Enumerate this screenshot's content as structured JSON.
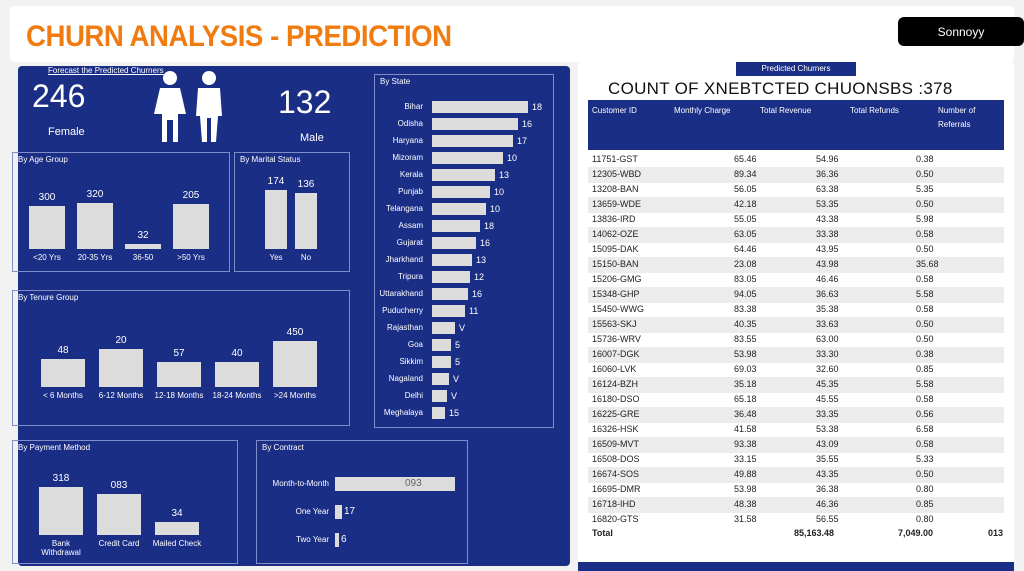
{
  "header": {
    "title": "CHURN ANALYSIS - PREDICTION",
    "summary_button": "Sonnoyy"
  },
  "kpi": {
    "label": "Forecast the Predicted Churners",
    "left_value": "246",
    "left_sub": "Female",
    "right_value": "132",
    "right_sub": "Male"
  },
  "panel_age": {
    "title": "By Age Group",
    "bars": [
      {
        "value": "300",
        "label": "<20 Yrs",
        "frac": 0.63
      },
      {
        "value": "320",
        "label": "20-35 Yrs",
        "frac": 0.68
      },
      {
        "value": "32",
        "label": "36-50",
        "frac": 0.07
      },
      {
        "value": "205",
        "label": ">50 Yrs",
        "frac": 0.66
      }
    ]
  },
  "panel_marital": {
    "title": "By Marital Status",
    "bars": [
      {
        "value": "174",
        "label": "Yes",
        "frac": 0.9
      },
      {
        "value": "136",
        "label": "No",
        "frac": 0.85
      }
    ]
  },
  "panel_tenure": {
    "title": "By Tenure Group",
    "bars": [
      {
        "value": "48",
        "label": "< 6 Months",
        "frac": 0.38
      },
      {
        "value": "20",
        "label": "6-12 Months",
        "frac": 0.52
      },
      {
        "value": "57",
        "label": "12-18 Months",
        "frac": 0.34
      },
      {
        "value": "40",
        "label": "18-24 Months",
        "frac": 0.34
      },
      {
        "value": "450",
        "label": ">24 Months",
        "frac": 0.62
      }
    ]
  },
  "panel_state": {
    "title": "By State",
    "rows": [
      {
        "label": "Bihar",
        "value": "18",
        "frac": 1.0
      },
      {
        "label": "Odisha",
        "value": "16",
        "frac": 0.9
      },
      {
        "label": "Haryana",
        "value": "17",
        "frac": 0.84
      },
      {
        "label": "Mizoram",
        "value": "10",
        "frac": 0.74
      },
      {
        "label": "Kerala",
        "value": "13",
        "frac": 0.66
      },
      {
        "label": "Punjab",
        "value": "10",
        "frac": 0.6
      },
      {
        "label": "Telangana",
        "value": "10",
        "frac": 0.56
      },
      {
        "label": "Assam",
        "value": "18",
        "frac": 0.5
      },
      {
        "label": "Gujarat",
        "value": "16",
        "frac": 0.46
      },
      {
        "label": "Jharkhand",
        "value": "13",
        "frac": 0.42
      },
      {
        "label": "Tripura",
        "value": "12",
        "frac": 0.4
      },
      {
        "label": "Uttarakhand",
        "value": "16",
        "frac": 0.38
      },
      {
        "label": "Puducherry",
        "value": "11",
        "frac": 0.34
      },
      {
        "label": "Rajasthan",
        "value": "V",
        "frac": 0.24
      },
      {
        "label": "Goa",
        "value": "5",
        "frac": 0.2
      },
      {
        "label": "Sikkim",
        "value": "5",
        "frac": 0.2
      },
      {
        "label": "Nagaland",
        "value": "V",
        "frac": 0.18
      },
      {
        "label": "Delhi",
        "value": "V",
        "frac": 0.16
      },
      {
        "label": "Meghalaya",
        "value": "15",
        "frac": 0.14
      }
    ]
  },
  "panel_payment": {
    "title": "By Payment Method",
    "bars": [
      {
        "value": "318",
        "label": "Bank Withdrawal",
        "frac": 0.73
      },
      {
        "value": "083",
        "label": "Credit Card",
        "frac": 0.62
      },
      {
        "value": "34",
        "label": "Mailed Check",
        "frac": 0.2
      }
    ]
  },
  "panel_contract": {
    "title": "By Contract",
    "rows": [
      {
        "label": "Month-to-Month",
        "value": "093",
        "frac": 1.0
      },
      {
        "label": "One Year",
        "value": "17",
        "frac": 0.06
      },
      {
        "label": "Two Year",
        "value": "6",
        "frac": 0.02
      }
    ]
  },
  "table": {
    "tag": "Predicted Churners",
    "title": "COUNT OF XNEBTCTED CHUONSBS :378",
    "headers": [
      "Customer ID",
      "Monthly Charge",
      "Total Revenue",
      "Total Refunds",
      "Number of Referrals"
    ],
    "rows": [
      [
        "11751-GST",
        "65.46",
        "54.96",
        "0.38",
        ""
      ],
      [
        "12305-WBD",
        "89.34",
        "36.36",
        "0.50",
        ""
      ],
      [
        "13208-BAN",
        "56.05",
        "63.38",
        "5.35",
        ""
      ],
      [
        "13659-WDE",
        "42.18",
        "53.35",
        "0.50",
        ""
      ],
      [
        "13836-IRD",
        "55.05",
        "43.38",
        "5.98",
        ""
      ],
      [
        "14062-OZE",
        "63.05",
        "33.38",
        "0.58",
        ""
      ],
      [
        "15095-DAK",
        "64.46",
        "43.95",
        "0.50",
        ""
      ],
      [
        "15150-BAN",
        "23.08",
        "43.98",
        "35.68",
        ""
      ],
      [
        "15206-GMG",
        "83.05",
        "46.46",
        "0.58",
        ""
      ],
      [
        "15348-GHP",
        "94.05",
        "36.63",
        "5.58",
        ""
      ],
      [
        "15450-WWG",
        "83.38",
        "35.38",
        "0.58",
        ""
      ],
      [
        "15563-SKJ",
        "40.35",
        "33.63",
        "0.50",
        ""
      ],
      [
        "15736-WRV",
        "83.55",
        "63.00",
        "0.50",
        ""
      ],
      [
        "16007-DGK",
        "53.98",
        "33.30",
        "0.38",
        ""
      ],
      [
        "16060-LVK",
        "69.03",
        "32.60",
        "0.85",
        ""
      ],
      [
        "16124-BZH",
        "35.18",
        "45.35",
        "5.58",
        ""
      ],
      [
        "16180-DSO",
        "65.18",
        "45.55",
        "0.58",
        ""
      ],
      [
        "16225-GRE",
        "36.48",
        "33.35",
        "0.56",
        ""
      ],
      [
        "16326-HSK",
        "41.58",
        "53.38",
        "6.58",
        ""
      ],
      [
        "16509-MVT",
        "93.38",
        "43.09",
        "0.58",
        ""
      ],
      [
        "16508-DOS",
        "33.15",
        "35.55",
        "5.33",
        ""
      ],
      [
        "16674-SOS",
        "49.88",
        "43.35",
        "0.50",
        ""
      ],
      [
        "16695-DMR",
        "53.98",
        "36.38",
        "0.80",
        ""
      ],
      [
        "16718-IHD",
        "48.38",
        "46.36",
        "0.85",
        ""
      ],
      [
        "16820-GTS",
        "31.58",
        "56.55",
        "0.80",
        ""
      ]
    ],
    "footer": [
      "Total",
      "85,163.48",
      "7,049.00",
      "013"
    ]
  }
}
